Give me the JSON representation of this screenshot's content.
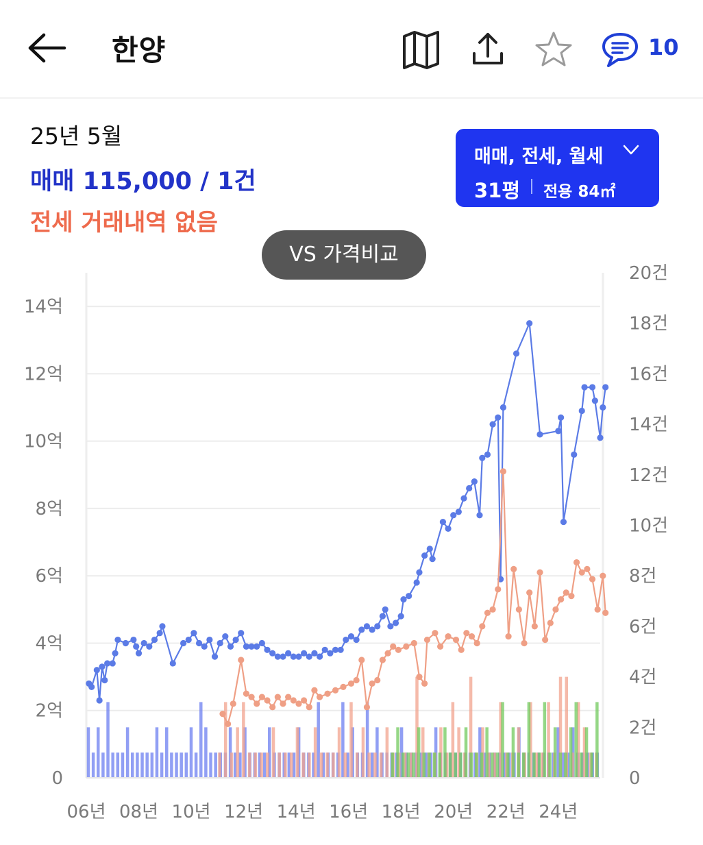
{
  "header": {
    "back_icon": "arrow-left-icon",
    "title": "한양",
    "icons": [
      "map-icon",
      "share-icon",
      "star-icon",
      "comment-icon"
    ],
    "comment_count": "10",
    "accent_color": "#1f3fd6"
  },
  "summary": {
    "date": "25년 5월",
    "sale": "매매 115,000 / 1건",
    "jeonse": "전세 거래내역 없음",
    "sale_color": "#2233c8",
    "jeonse_color": "#ee6a4c"
  },
  "filter": {
    "types": "매매, 전세, 월세",
    "pyeong": "31평",
    "area": "전용 84㎡",
    "background": "#1f35f0"
  },
  "compare_button": "VS 가격비교",
  "chart_data": {
    "type": "line",
    "xlabel": "",
    "ylabel": "",
    "x_tick_labels": [
      "06년",
      "08년",
      "10년",
      "12년",
      "14년",
      "16년",
      "18년",
      "20년",
      "22년",
      "24년"
    ],
    "y_left_tick_labels": [
      "0",
      "2억",
      "4억",
      "6억",
      "8억",
      "10억",
      "12억",
      "14억"
    ],
    "y_right_tick_labels": [
      "0",
      "2건",
      "4건",
      "6건",
      "8건",
      "10건",
      "12건",
      "14건",
      "16건",
      "18건",
      "20건"
    ],
    "ylim_left": [
      0,
      15
    ],
    "ylim_right": [
      0,
      20
    ],
    "xlim": [
      2006.0,
      2025.6
    ],
    "grid": true,
    "series": [
      {
        "kind": "line",
        "axis": "left",
        "color": "#5b7be6",
        "points": [
          [
            2006.1,
            2.8
          ],
          [
            2006.2,
            2.7
          ],
          [
            2006.4,
            3.2
          ],
          [
            2006.5,
            2.3
          ],
          [
            2006.6,
            3.3
          ],
          [
            2006.7,
            2.9
          ],
          [
            2006.8,
            3.4
          ],
          [
            2007.0,
            3.4
          ],
          [
            2007.1,
            3.7
          ],
          [
            2007.2,
            4.1
          ],
          [
            2007.5,
            4.0
          ],
          [
            2007.8,
            4.1
          ],
          [
            2007.9,
            3.9
          ],
          [
            2008.0,
            3.7
          ],
          [
            2008.2,
            4.0
          ],
          [
            2008.4,
            3.9
          ],
          [
            2008.6,
            4.1
          ],
          [
            2008.8,
            4.3
          ],
          [
            2008.9,
            4.5
          ],
          [
            2009.3,
            3.4
          ],
          [
            2009.7,
            4.0
          ],
          [
            2009.9,
            4.1
          ],
          [
            2010.1,
            4.3
          ],
          [
            2010.3,
            4.0
          ],
          [
            2010.5,
            3.9
          ],
          [
            2010.7,
            4.1
          ],
          [
            2010.9,
            3.6
          ],
          [
            2011.1,
            4.0
          ],
          [
            2011.3,
            4.2
          ],
          [
            2011.5,
            3.9
          ],
          [
            2011.7,
            4.1
          ],
          [
            2011.9,
            4.3
          ],
          [
            2012.1,
            3.9
          ],
          [
            2012.3,
            3.9
          ],
          [
            2012.5,
            3.9
          ],
          [
            2012.7,
            4.0
          ],
          [
            2012.9,
            3.8
          ],
          [
            2013.1,
            3.7
          ],
          [
            2013.3,
            3.6
          ],
          [
            2013.5,
            3.6
          ],
          [
            2013.7,
            3.7
          ],
          [
            2013.9,
            3.6
          ],
          [
            2014.1,
            3.6
          ],
          [
            2014.3,
            3.7
          ],
          [
            2014.5,
            3.6
          ],
          [
            2014.7,
            3.7
          ],
          [
            2014.9,
            3.6
          ],
          [
            2015.1,
            3.8
          ],
          [
            2015.3,
            3.7
          ],
          [
            2015.5,
            3.8
          ],
          [
            2015.7,
            3.8
          ],
          [
            2015.9,
            4.1
          ],
          [
            2016.1,
            4.2
          ],
          [
            2016.3,
            4.1
          ],
          [
            2016.5,
            4.4
          ],
          [
            2016.7,
            4.5
          ],
          [
            2016.9,
            4.4
          ],
          [
            2017.1,
            4.5
          ],
          [
            2017.3,
            4.8
          ],
          [
            2017.4,
            5.0
          ],
          [
            2017.6,
            4.5
          ],
          [
            2017.8,
            4.6
          ],
          [
            2018.0,
            4.8
          ],
          [
            2018.1,
            5.3
          ],
          [
            2018.3,
            5.4
          ],
          [
            2018.6,
            5.8
          ],
          [
            2018.7,
            6.1
          ],
          [
            2018.9,
            6.6
          ],
          [
            2019.1,
            6.8
          ],
          [
            2019.2,
            6.5
          ],
          [
            2019.6,
            7.6
          ],
          [
            2019.8,
            7.4
          ],
          [
            2020.0,
            7.8
          ],
          [
            2020.2,
            7.9
          ],
          [
            2020.4,
            8.3
          ],
          [
            2020.6,
            8.6
          ],
          [
            2020.8,
            8.8
          ],
          [
            2021.0,
            7.8
          ],
          [
            2021.1,
            9.5
          ],
          [
            2021.3,
            9.6
          ],
          [
            2021.5,
            10.5
          ],
          [
            2021.7,
            10.7
          ],
          [
            2021.8,
            5.9
          ],
          [
            2021.9,
            11.0
          ],
          [
            2022.4,
            12.6
          ],
          [
            2022.9,
            13.5
          ],
          [
            2023.3,
            10.2
          ],
          [
            2024.0,
            10.3
          ],
          [
            2024.1,
            10.7
          ],
          [
            2024.2,
            7.6
          ],
          [
            2024.6,
            9.6
          ],
          [
            2024.9,
            10.9
          ],
          [
            2025.0,
            11.6
          ],
          [
            2025.3,
            11.6
          ],
          [
            2025.4,
            11.2
          ],
          [
            2025.6,
            10.1
          ],
          [
            2025.7,
            11.0
          ],
          [
            2025.8,
            11.6
          ]
        ]
      },
      {
        "kind": "line",
        "axis": "left",
        "color": "#ef9f85",
        "points": [
          [
            2011.2,
            1.9
          ],
          [
            2011.4,
            1.6
          ],
          [
            2011.6,
            2.2
          ],
          [
            2011.9,
            3.5
          ],
          [
            2012.1,
            2.5
          ],
          [
            2012.3,
            2.4
          ],
          [
            2012.5,
            2.2
          ],
          [
            2012.7,
            2.4
          ],
          [
            2012.9,
            2.3
          ],
          [
            2013.1,
            2.1
          ],
          [
            2013.3,
            2.4
          ],
          [
            2013.5,
            2.2
          ],
          [
            2013.7,
            2.4
          ],
          [
            2013.9,
            2.3
          ],
          [
            2014.1,
            2.2
          ],
          [
            2014.3,
            2.3
          ],
          [
            2014.5,
            2.1
          ],
          [
            2014.7,
            2.6
          ],
          [
            2014.9,
            2.4
          ],
          [
            2015.2,
            2.5
          ],
          [
            2015.5,
            2.6
          ],
          [
            2015.8,
            2.7
          ],
          [
            2016.1,
            2.8
          ],
          [
            2016.3,
            2.9
          ],
          [
            2016.5,
            3.5
          ],
          [
            2016.7,
            2.1
          ],
          [
            2016.9,
            2.8
          ],
          [
            2017.1,
            2.9
          ],
          [
            2017.3,
            3.5
          ],
          [
            2017.5,
            3.7
          ],
          [
            2017.7,
            3.9
          ],
          [
            2017.9,
            3.8
          ],
          [
            2018.2,
            3.9
          ],
          [
            2018.5,
            4.0
          ],
          [
            2018.7,
            3.0
          ],
          [
            2018.9,
            2.8
          ],
          [
            2019.0,
            4.1
          ],
          [
            2019.3,
            4.3
          ],
          [
            2019.5,
            3.9
          ],
          [
            2019.8,
            4.2
          ],
          [
            2020.1,
            4.1
          ],
          [
            2020.3,
            3.8
          ],
          [
            2020.5,
            4.3
          ],
          [
            2020.7,
            4.2
          ],
          [
            2020.9,
            4.0
          ],
          [
            2021.1,
            4.5
          ],
          [
            2021.3,
            4.9
          ],
          [
            2021.5,
            5.0
          ],
          [
            2021.7,
            5.6
          ],
          [
            2021.9,
            9.1
          ],
          [
            2022.1,
            4.2
          ],
          [
            2022.3,
            6.2
          ],
          [
            2022.5,
            5.0
          ],
          [
            2022.7,
            4.0
          ],
          [
            2022.9,
            5.5
          ],
          [
            2023.1,
            4.5
          ],
          [
            2023.3,
            6.1
          ],
          [
            2023.5,
            4.1
          ],
          [
            2023.7,
            4.6
          ],
          [
            2023.9,
            5.0
          ],
          [
            2024.1,
            5.3
          ],
          [
            2024.3,
            5.5
          ],
          [
            2024.5,
            5.4
          ],
          [
            2024.7,
            6.4
          ],
          [
            2024.9,
            6.1
          ],
          [
            2025.1,
            6.2
          ],
          [
            2025.3,
            5.9
          ],
          [
            2025.5,
            5.0
          ],
          [
            2025.7,
            6.0
          ],
          [
            2025.8,
            4.9
          ]
        ]
      },
      {
        "kind": "bars",
        "axis": "right",
        "color": "#6c7ff0",
        "counts": [
          2,
          1,
          2,
          1,
          3,
          1,
          1,
          1,
          2,
          1,
          1,
          1,
          1,
          1,
          2,
          1,
          2,
          1,
          1,
          1,
          1,
          2,
          1,
          3,
          2,
          1,
          1,
          1,
          1,
          2,
          1,
          1,
          2,
          1,
          1,
          1,
          1,
          2,
          1,
          1,
          1,
          1,
          1,
          2,
          1,
          1,
          1,
          3,
          1,
          1,
          1,
          1,
          3,
          1,
          2,
          1,
          1,
          3,
          1,
          2,
          1,
          1,
          1,
          1,
          2,
          1,
          1,
          1,
          1,
          1,
          1,
          2,
          1,
          1,
          1,
          1,
          1,
          1,
          1,
          1,
          2,
          1,
          1,
          1,
          1,
          1,
          1,
          1,
          2,
          1,
          1,
          1,
          1,
          1,
          1,
          1,
          2,
          1,
          1,
          2,
          1,
          1,
          1,
          1,
          1
        ]
      },
      {
        "kind": "bars",
        "axis": "right",
        "color": "#f2a38e",
        "counts": [
          1,
          3,
          1,
          2,
          3,
          1,
          1,
          1,
          1,
          2,
          1,
          1,
          1,
          2,
          1,
          1,
          2,
          1,
          1,
          1,
          2,
          1,
          3,
          1,
          2,
          1,
          1,
          1,
          2,
          1,
          1,
          1,
          1,
          4,
          2,
          1,
          1,
          2,
          1,
          3,
          2,
          1,
          4,
          1,
          2,
          1,
          1,
          3,
          1,
          1,
          2,
          1,
          3,
          1,
          1,
          3,
          1,
          4,
          4,
          1,
          3,
          2,
          1,
          1
        ]
      },
      {
        "kind": "bars",
        "axis": "right",
        "color": "#71c95e",
        "counts": [
          1,
          2,
          1,
          1,
          1,
          2,
          1,
          1,
          1,
          1,
          2,
          1,
          1,
          1,
          2,
          1,
          1,
          1,
          2,
          1,
          1,
          3,
          1,
          2,
          1,
          1,
          3,
          1,
          1,
          3,
          1,
          2,
          1,
          1,
          2,
          3,
          1,
          2,
          1,
          3
        ]
      }
    ]
  }
}
